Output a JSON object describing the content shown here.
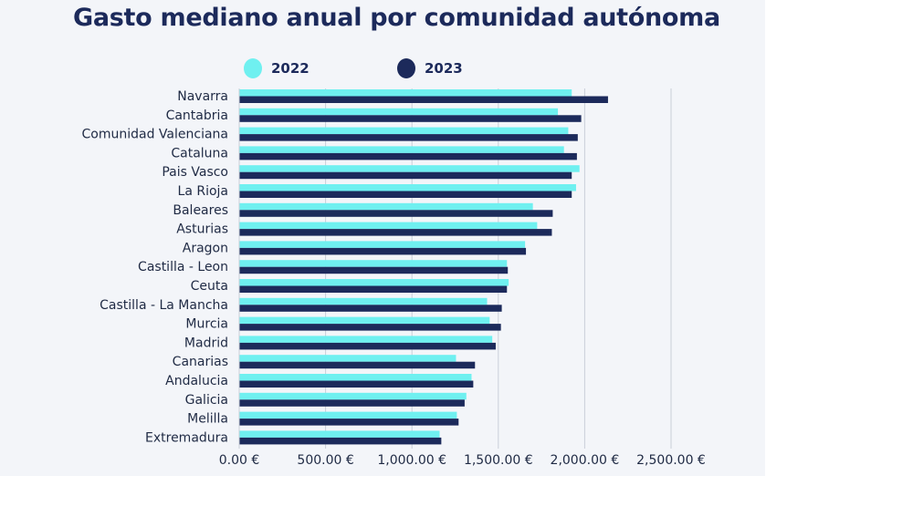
{
  "colors": {
    "background_panel": "#f3f5f9",
    "series_2022": "#6ff0f0",
    "series_2023": "#1c2a5b",
    "grid": "#c9ced8",
    "title": "#1c2a5b"
  },
  "chart_data": {
    "type": "bar",
    "orientation": "horizontal",
    "title": "Gasto mediano anual por comunidad autónoma",
    "xlabel": "",
    "ylabel": "",
    "xlim": [
      0,
      2500
    ],
    "grid": true,
    "legend_position": "top",
    "categories": [
      "Navarra",
      "Cantabria",
      "Comunidad Valenciana",
      "Cataluna",
      "Pais Vasco",
      "La Rioja",
      "Baleares",
      "Asturias",
      "Aragon",
      "Castilla - Leon",
      "Ceuta",
      "Castilla - La Mancha",
      "Murcia",
      "Madrid",
      "Canarias",
      "Andalucia",
      "Galicia",
      "Melilla",
      "Extremadura"
    ],
    "series": [
      {
        "name": "2022",
        "color": "#6ff0f0",
        "values": [
          1925,
          1845,
          1905,
          1880,
          1970,
          1950,
          1700,
          1725,
          1655,
          1550,
          1560,
          1435,
          1450,
          1465,
          1255,
          1345,
          1315,
          1260,
          1160
        ]
      },
      {
        "name": "2023",
        "color": "#1c2a5b",
        "values": [
          2135,
          1980,
          1960,
          1955,
          1925,
          1925,
          1815,
          1810,
          1660,
          1555,
          1550,
          1520,
          1515,
          1485,
          1365,
          1355,
          1305,
          1270,
          1170
        ]
      }
    ],
    "x_ticks": [
      {
        "value": 0,
        "label": "0.00 €"
      },
      {
        "value": 500,
        "label": "500.00 €"
      },
      {
        "value": 1000,
        "label": "1,000.00 €"
      },
      {
        "value": 1500,
        "label": "1,500.00 €"
      },
      {
        "value": 2000,
        "label": "2,000.00 €"
      },
      {
        "value": 2500,
        "label": "2,500.00 €"
      }
    ]
  }
}
